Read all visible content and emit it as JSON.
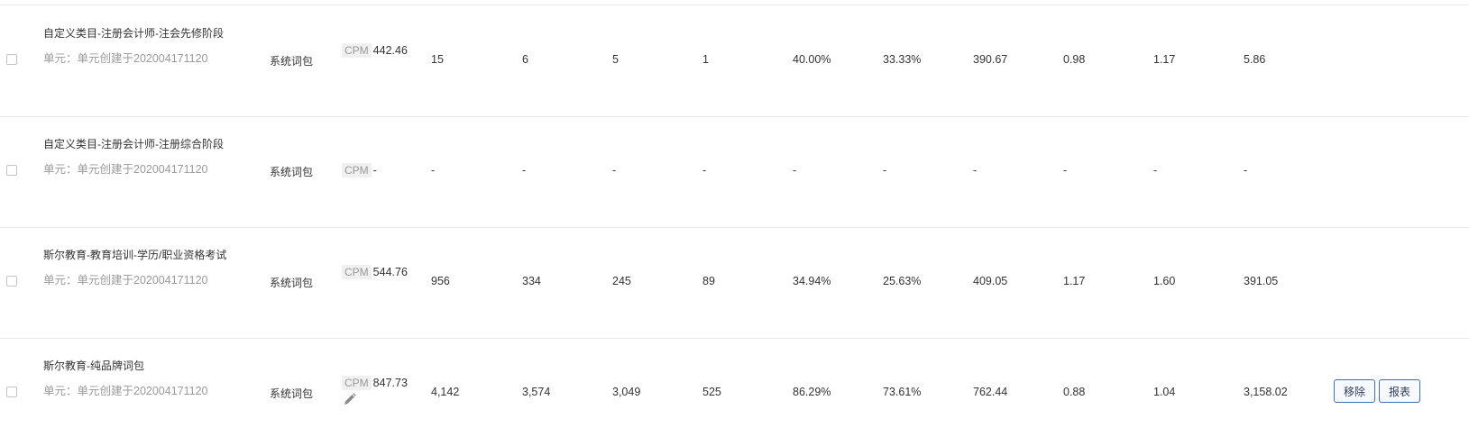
{
  "table": {
    "rows": [
      {
        "name": "自定义类目-注册会计师-注会先修阶段",
        "unit": "单元：单元创建于202004171120",
        "package": "系统词包",
        "bid_tag": "CPM",
        "bid": "442.46",
        "metrics": [
          "15",
          "6",
          "5",
          "1",
          "40.00%",
          "33.33%",
          "390.67",
          "0.98",
          "1.17",
          "5.86"
        ]
      },
      {
        "name": "自定义类目-注册会计师-注册综合阶段",
        "unit": "单元：单元创建于202004171120",
        "package": "系统词包",
        "bid_tag": "CPM",
        "bid": "-",
        "metrics": [
          "-",
          "-",
          "-",
          "-",
          "-",
          "-",
          "-",
          "-",
          "-",
          "-"
        ]
      },
      {
        "name": "斯尔教育-教育培训-学历/职业资格考试",
        "unit": "单元：单元创建于202004171120",
        "package": "系统词包",
        "bid_tag": "CPM",
        "bid": "544.76",
        "metrics": [
          "956",
          "334",
          "245",
          "89",
          "34.94%",
          "25.63%",
          "409.05",
          "1.17",
          "1.60",
          "391.05"
        ]
      },
      {
        "name": "斯尔教育-纯品牌词包",
        "unit": "单元：单元创建于202004171120",
        "package": "系统词包",
        "bid_tag": "CPM",
        "bid": "847.73",
        "metrics": [
          "4,142",
          "3,574",
          "3,049",
          "525",
          "86.29%",
          "73.61%",
          "762.44",
          "0.88",
          "1.04",
          "3,158.02"
        ],
        "actions": {
          "remove_label": "移除",
          "report_label": "报表"
        },
        "edit_icon": "pencil-icon"
      }
    ]
  }
}
